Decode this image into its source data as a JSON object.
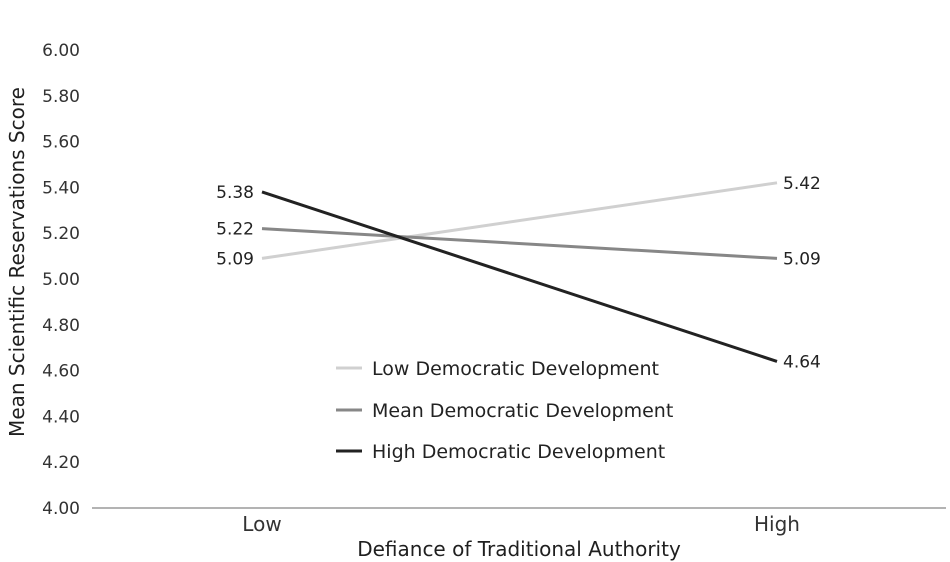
{
  "chart_data": {
    "type": "line",
    "xlabel": "Defiance of Traditional Authority",
    "ylabel": "Mean Scientific Reservations Score",
    "categories": [
      "Low",
      "High"
    ],
    "ylim": [
      4.0,
      6.0
    ],
    "yticks": [
      "4.00",
      "4.20",
      "4.40",
      "4.60",
      "4.80",
      "5.00",
      "5.20",
      "5.40",
      "5.60",
      "5.80",
      "6.00"
    ],
    "grid": false,
    "legend_position": "bottom-center",
    "series": [
      {
        "name": "Low Democratic Development",
        "values": [
          5.09,
          5.42
        ],
        "labels": [
          "5.09",
          "5.42"
        ],
        "color": "#d0d0d0"
      },
      {
        "name": "Mean  Democratic Development",
        "values": [
          5.22,
          5.09
        ],
        "labels": [
          "5.22",
          "5.09"
        ],
        "color": "#878787"
      },
      {
        "name": "High  Democratic Development",
        "values": [
          5.38,
          4.64
        ],
        "labels": [
          "5.38",
          "4.64"
        ],
        "color": "#222222"
      }
    ]
  }
}
